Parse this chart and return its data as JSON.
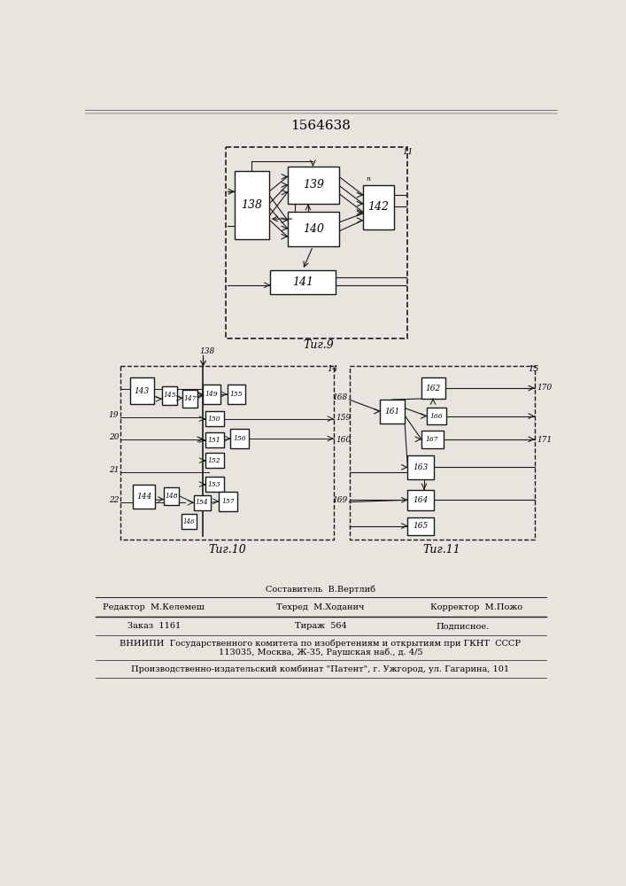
{
  "title_number": "1564638",
  "fig9_label": "Τиг.9",
  "fig10_label": "Τиг.10",
  "fig11_label": "Τиг.11",
  "background": "#e8e4de",
  "box_color": "#ffffff",
  "line_color": "#1a1a1a",
  "footer": {
    "sestavitel": "Составитель  В.Вертлиб",
    "redaktor": "Редактор  М.Келемеш",
    "tehred": "Техред  М.Ходанич",
    "korrektor": "Корректор  М.Пожо",
    "zakaz": "Заказ  1161",
    "tirazh": "Тираж  564",
    "podpisnoe": "Подписное.",
    "vniipи1": "ВНИИПИ  Государственного комитета по изобретениям и открытиям при ГКНТ  СССР",
    "vniipи2": "113035, Москва, Ж-35, Раушская наб., д. 4/5",
    "kombinat": "Производственно-издательский комбинат \"Патент\", г. Ужгород, ул. Гагарина, 101"
  }
}
